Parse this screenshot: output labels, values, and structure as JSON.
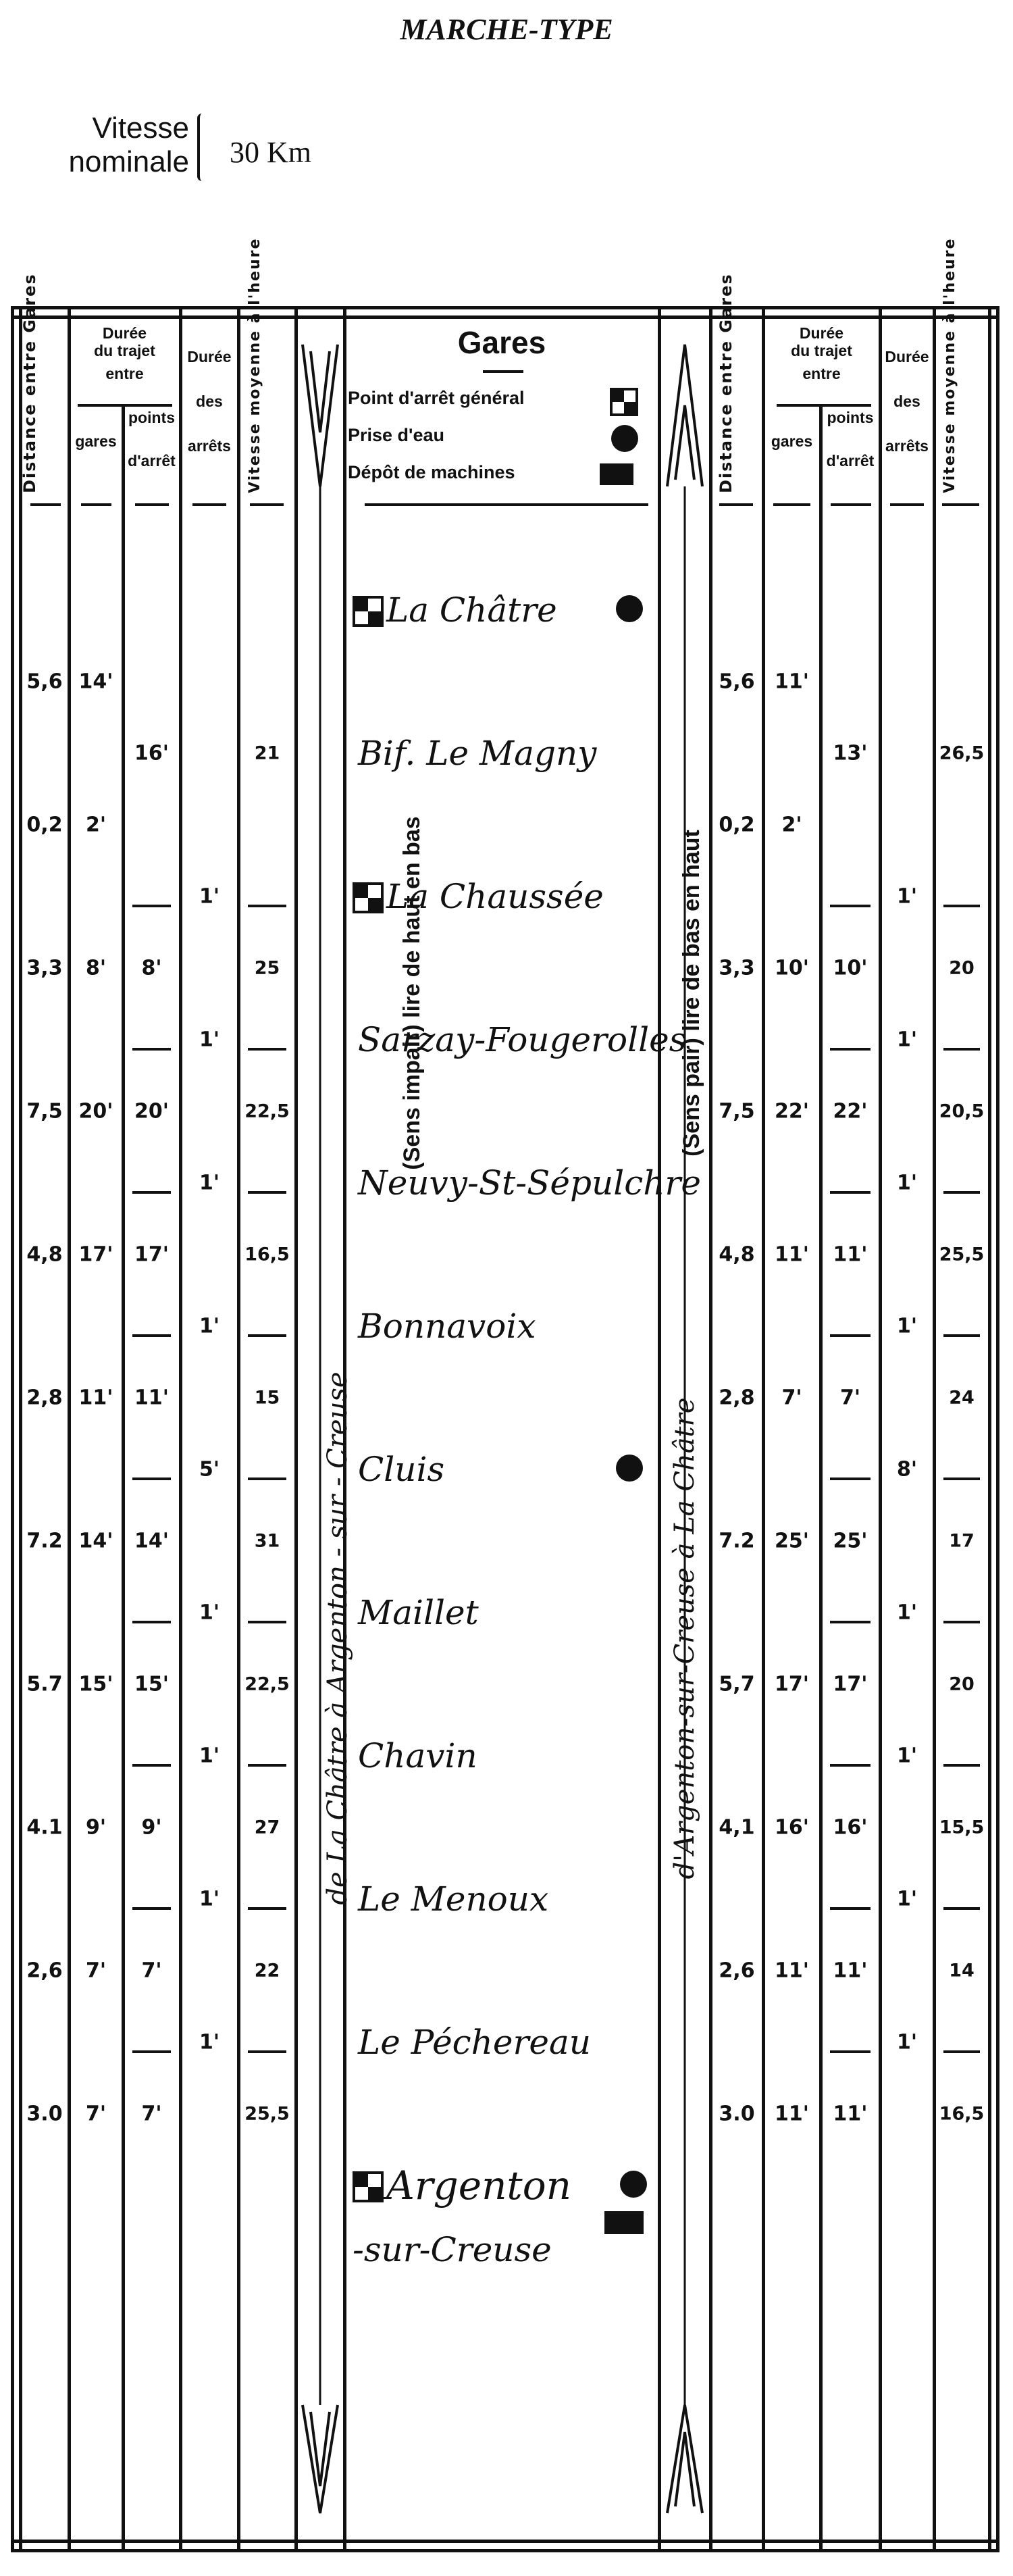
{
  "title": "MARCHE-TYPE",
  "nominal_speed": {
    "label_line1": "Vitesse",
    "label_line2": "nominale",
    "value": "30 Km"
  },
  "headers": {
    "distance": "Distance entre Gares",
    "duree_trajet_l1": "Durée",
    "duree_trajet_l2": "du trajet",
    "duree_trajet_l3": "entre",
    "gares": "gares",
    "points_l1": "points",
    "points_l2": "d'arrêt",
    "arrets_l1": "Durée",
    "arrets_l2": "des",
    "arrets_l3": "arrêts",
    "vitesse": "Vitesse moyenne à l'heure",
    "stations": "Gares"
  },
  "legend": [
    {
      "label": "Point d'arrêt général",
      "icon": "checker-square-icon"
    },
    {
      "label": "Prise d'eau",
      "icon": "black-circle-icon"
    },
    {
      "label": "Dépôt de machines",
      "icon": "black-rectangle-icon"
    }
  ],
  "direction_left": {
    "line1": "de La Châtre à Argenton - sur - Creuse",
    "line2": "(Sens impair) lire de haut en bas"
  },
  "direction_right": {
    "line1": "d'Argenton-sur-Creuse à La Châtre",
    "line2": "(Sens pair) lire de bas en haut"
  },
  "rows": [
    {
      "station": "La Châtre",
      "point_arret": true,
      "prise_eau": true
    },
    {
      "L": [
        "5,6",
        "14'",
        "",
        "",
        ""
      ],
      "R": [
        "5,6",
        "11'",
        "",
        "",
        ""
      ]
    },
    {
      "station": "Bif. Le Magny",
      "L": [
        "",
        "",
        "16'",
        "",
        "21"
      ],
      "R": [
        "",
        "",
        "13'",
        "",
        "26,5"
      ]
    },
    {
      "L": [
        "0,2",
        "2'",
        "",
        "",
        ""
      ],
      "R": [
        "0,2",
        "2'",
        "",
        "",
        ""
      ]
    },
    {
      "station": "La Chaussée",
      "point_arret": true,
      "L": [
        "",
        "",
        "—",
        "1'",
        "—"
      ],
      "R": [
        "",
        "",
        "—",
        "1'",
        "—"
      ]
    },
    {
      "L": [
        "3,3",
        "8'",
        "8'",
        "",
        "25"
      ],
      "R": [
        "3,3",
        "10'",
        "10'",
        "",
        "20"
      ]
    },
    {
      "station": "Sarzay-Fougerolles",
      "L": [
        "",
        "",
        "—",
        "1'",
        "—"
      ],
      "R": [
        "",
        "",
        "—",
        "1'",
        "—"
      ]
    },
    {
      "L": [
        "7,5",
        "20'",
        "20'",
        "",
        "22,5"
      ],
      "R": [
        "7,5",
        "22'",
        "22'",
        "",
        "20,5"
      ]
    },
    {
      "station": "Neuvy-St-Sépulchre",
      "L": [
        "",
        "",
        "—",
        "1'",
        "—"
      ],
      "R": [
        "",
        "",
        "—",
        "1'",
        "—"
      ]
    },
    {
      "L": [
        "4,8",
        "17'",
        "17'",
        "",
        "16,5"
      ],
      "R": [
        "4,8",
        "11'",
        "11'",
        "",
        "25,5"
      ]
    },
    {
      "station": "Bonnavoix",
      "L": [
        "",
        "",
        "—",
        "1'",
        "—"
      ],
      "R": [
        "",
        "",
        "—",
        "1'",
        "—"
      ]
    },
    {
      "L": [
        "2,8",
        "11'",
        "11'",
        "",
        "15"
      ],
      "R": [
        "2,8",
        "7'",
        "7'",
        "",
        "24"
      ]
    },
    {
      "station": "Cluis",
      "prise_eau": true,
      "L": [
        "",
        "",
        "—",
        "5'",
        "—"
      ],
      "R": [
        "",
        "",
        "—",
        "8'",
        "—"
      ]
    },
    {
      "L": [
        "7.2",
        "14'",
        "14'",
        "",
        "31"
      ],
      "R": [
        "7.2",
        "25'",
        "25'",
        "",
        "17"
      ]
    },
    {
      "station": "Maillet",
      "L": [
        "",
        "",
        "—",
        "1'",
        "—"
      ],
      "R": [
        "",
        "",
        "—",
        "1'",
        "—"
      ]
    },
    {
      "L": [
        "5.7",
        "15'",
        "15'",
        "",
        "22,5"
      ],
      "R": [
        "5,7",
        "17'",
        "17'",
        "",
        "20"
      ]
    },
    {
      "station": "Chavin",
      "L": [
        "",
        "",
        "—",
        "1'",
        "—"
      ],
      "R": [
        "",
        "",
        "—",
        "1'",
        "—"
      ]
    },
    {
      "L": [
        "4.1",
        "9'",
        "9'",
        "",
        "27"
      ],
      "R": [
        "4,1",
        "16'",
        "16'",
        "",
        "15,5"
      ]
    },
    {
      "station": "Le Menoux",
      "L": [
        "",
        "",
        "—",
        "1'",
        "—"
      ],
      "R": [
        "",
        "",
        "—",
        "1'",
        "—"
      ]
    },
    {
      "L": [
        "2,6",
        "7'",
        "7'",
        "",
        "22"
      ],
      "R": [
        "2,6",
        "11'",
        "11'",
        "",
        "14"
      ]
    },
    {
      "station": "Le Péchereau",
      "L": [
        "",
        "",
        "—",
        "1'",
        "—"
      ],
      "R": [
        "",
        "",
        "—",
        "1'",
        "—"
      ]
    },
    {
      "L": [
        "3.0",
        "7'",
        "7'",
        "",
        "25,5"
      ],
      "R": [
        "3.0",
        "11'",
        "11'",
        "",
        "16,5"
      ]
    },
    {
      "station": "Argenton",
      "station_line2": "-sur-Creuse",
      "point_arret": true,
      "prise_eau": true,
      "depot": true
    }
  ]
}
